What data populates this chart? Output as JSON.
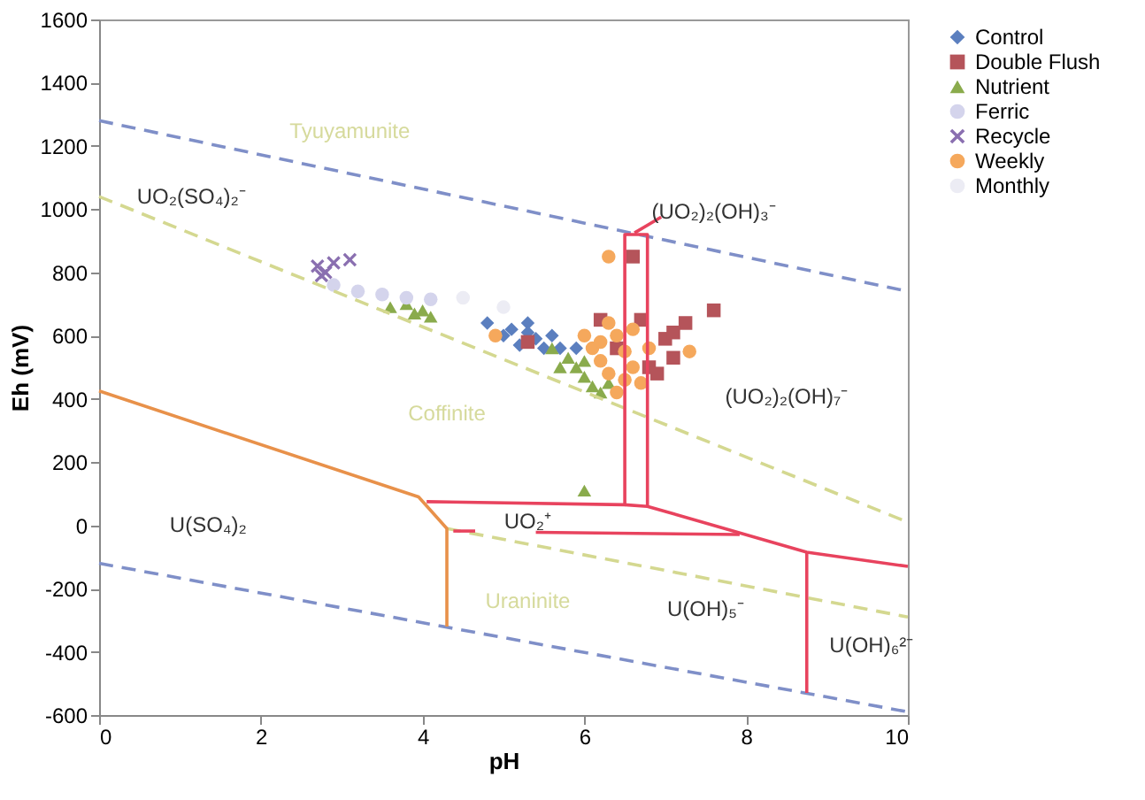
{
  "chart_data": {
    "type": "scatter",
    "xlabel": "pH",
    "ylabel": "Eh (mV)",
    "xlim": [
      0,
      10
    ],
    "xticks": [
      0,
      2,
      4,
      6,
      8,
      10
    ],
    "ylim": [
      -600,
      1600
    ],
    "yticks": [
      -600,
      -400,
      -200,
      0,
      200,
      400,
      600,
      800,
      1000,
      1200,
      1400,
      1600
    ],
    "grid": false,
    "legend": "right",
    "series": [
      {
        "name": "Control",
        "marker": "diamond",
        "color": "#5b7fbf",
        "x": [
          4.8,
          5.0,
          5.1,
          5.3,
          5.4,
          5.5,
          5.2,
          5.6,
          5.7,
          5.9,
          5.3
        ],
        "values": [
          640,
          600,
          620,
          640,
          590,
          560,
          570,
          600,
          560,
          560,
          610
        ]
      },
      {
        "name": "Double Flush",
        "marker": "square",
        "color": "#b5545a",
        "x": [
          6.6,
          7.6,
          6.2,
          6.7,
          7.25,
          7.0,
          7.1,
          7.1,
          6.8,
          5.3,
          6.4,
          6.9
        ],
        "values": [
          850,
          680,
          650,
          650,
          640,
          590,
          610,
          530,
          500,
          580,
          560,
          480
        ]
      },
      {
        "name": "Nutrient",
        "marker": "triangle",
        "color": "#8aab4c",
        "x": [
          3.6,
          3.8,
          3.9,
          4.0,
          4.1,
          5.6,
          5.8,
          5.9,
          6.0,
          6.1,
          6.2,
          5.7,
          6.0,
          6.3,
          6.0
        ],
        "values": [
          690,
          700,
          670,
          680,
          660,
          560,
          530,
          500,
          470,
          440,
          420,
          500,
          520,
          450,
          110
        ]
      },
      {
        "name": "Ferric",
        "marker": "circle",
        "color": "#d4d4ec",
        "x": [
          2.9,
          3.2,
          3.5,
          3.8,
          4.1
        ],
        "values": [
          760,
          740,
          730,
          720,
          715
        ]
      },
      {
        "name": "Recycle",
        "marker": "cross",
        "color": "#8a6fb0",
        "x": [
          2.7,
          2.8,
          2.9,
          3.1,
          2.75
        ],
        "values": [
          820,
          800,
          830,
          840,
          790
        ]
      },
      {
        "name": "Weekly",
        "marker": "circle",
        "color": "#f5a85c",
        "x": [
          6.3,
          7.3,
          4.9,
          6.0,
          6.1,
          6.2,
          6.3,
          6.4,
          6.5,
          6.6,
          6.7,
          6.4,
          6.3,
          6.6,
          6.2,
          6.5,
          6.8
        ],
        "values": [
          850,
          550,
          600,
          600,
          560,
          520,
          480,
          600,
          550,
          500,
          450,
          420,
          640,
          620,
          580,
          460,
          560
        ]
      },
      {
        "name": "Monthly",
        "marker": "circle",
        "color": "#ececf4",
        "x": [
          4.5,
          5.0
        ],
        "values": [
          720,
          690
        ]
      },
      {
        "type": "line",
        "color": "#7f8fc8",
        "line_style": "dashed",
        "x": [
          0,
          10
        ],
        "values": [
          1280,
          740
        ]
      },
      {
        "type": "line",
        "color": "#7f8fc8",
        "line_style": "dashed",
        "x": [
          0,
          10
        ],
        "values": [
          -120,
          -590
        ]
      },
      {
        "type": "line",
        "color": "#d4d890",
        "line_style": "dashed",
        "x": [
          0,
          10
        ],
        "values": [
          1040,
          10
        ]
      },
      {
        "type": "line",
        "color": "#d4d890",
        "line_style": "dashed",
        "x": [
          4.3,
          10
        ],
        "values": [
          -10,
          -290
        ]
      },
      {
        "type": "line",
        "color": "#e8914a",
        "line_style": "solid",
        "x": [
          0,
          3.95,
          4.3,
          4.3
        ],
        "values": [
          425,
          90,
          -10,
          -320
        ]
      },
      {
        "type": "line",
        "color": "#e8435e",
        "line_style": "solid",
        "x": [
          4.05,
          6.5,
          6.5,
          6.78,
          6.78
        ],
        "values": [
          75,
          65,
          920,
          920,
          60
        ]
      },
      {
        "type": "line",
        "color": "#e8435e",
        "line_style": "solid",
        "x": [
          6.5,
          6.78,
          8.75,
          10
        ],
        "values": [
          65,
          60,
          -85,
          -130
        ]
      },
      {
        "type": "line",
        "color": "#e8435e",
        "line_style": "solid",
        "x": [
          8.75,
          8.75
        ],
        "values": [
          -85,
          -530
        ]
      },
      {
        "type": "line",
        "color": "#e8435e",
        "line_style": "solid",
        "x": [
          4.38,
          4.65
        ],
        "values": [
          -18,
          -18
        ]
      },
      {
        "type": "line",
        "color": "#e8435e",
        "line_style": "solid",
        "x": [
          5.4,
          7.92
        ],
        "values": [
          -22,
          -29
        ]
      },
      {
        "type": "line",
        "color": "#e8435e",
        "line_style": "solid",
        "x": [
          6.95,
          6.62
        ],
        "values": [
          975,
          925
        ]
      }
    ],
    "annotations": [
      "Tyuyamunite",
      "UO₂(SO₄)₂⁻",
      "(UO₂)₂(OH)₃⁻",
      "(UO₂)₂(OH)₇⁻",
      "Coffinite",
      "U(SO₄)₂",
      "UO₂⁺",
      "Uraninite",
      "U(OH)₅⁻",
      "U(OH)₆²⁻"
    ]
  }
}
